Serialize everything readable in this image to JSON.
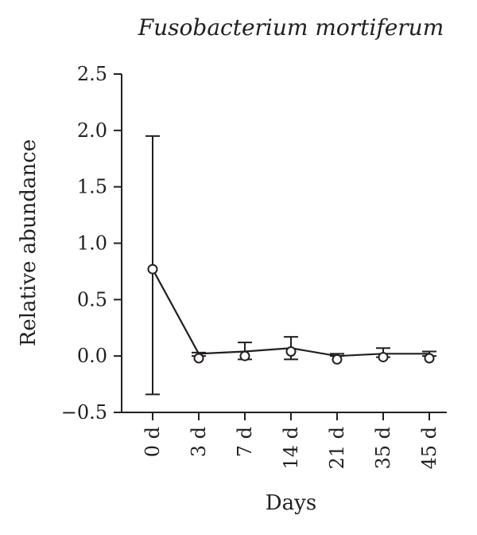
{
  "chart_data": {
    "type": "line",
    "title": "Fusobacterium mortiferum",
    "xlabel": "Days",
    "ylabel": "Relative abundance",
    "categories": [
      "0 d",
      "3 d",
      "7 d",
      "14 d",
      "21 d",
      "35 d",
      "45 d"
    ],
    "values": [
      0.77,
      0.02,
      0.04,
      0.07,
      0.0,
      0.02,
      0.02
    ],
    "error_low": [
      -0.34,
      0.0,
      -0.03,
      -0.03,
      0.0,
      -0.01,
      0.0
    ],
    "error_high": [
      1.95,
      0.03,
      0.12,
      0.17,
      0.02,
      0.07,
      0.04
    ],
    "point_values": [
      0.77,
      -0.02,
      0.0,
      0.04,
      -0.03,
      -0.01,
      -0.02
    ],
    "ylim": [
      -0.5,
      2.5
    ],
    "yticks": [
      "−0.5",
      "0.0",
      "0.5",
      "1.0",
      "1.5",
      "2.0",
      "2.5"
    ],
    "ytick_values": [
      -0.5,
      0.0,
      0.5,
      1.0,
      1.5,
      2.0,
      2.5
    ],
    "grid": false,
    "legend": "none",
    "color": "#231f20"
  }
}
